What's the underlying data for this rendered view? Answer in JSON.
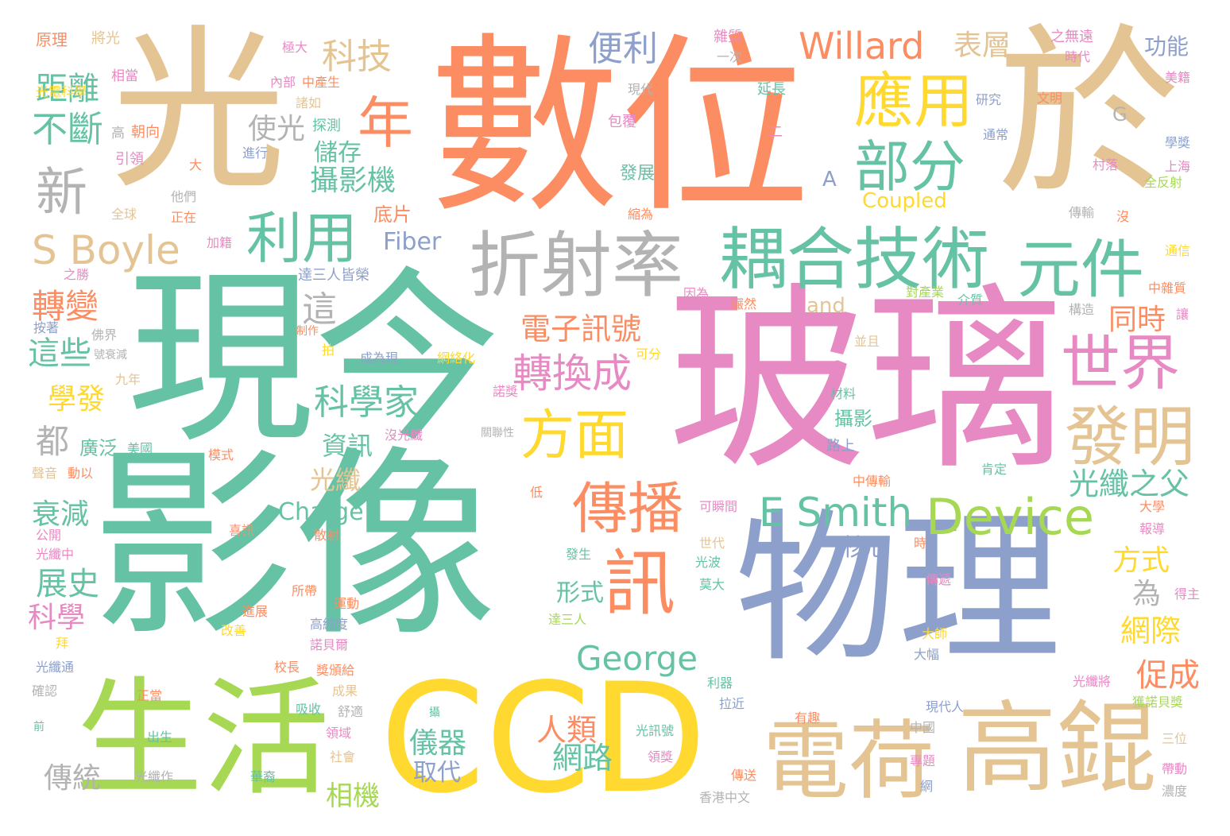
{
  "palette": {
    "teal": "#66c2a5",
    "orange": "#fc8d62",
    "blue": "#8da0cb",
    "pink": "#e78ac3",
    "green": "#a6d854",
    "yellow": "#ffd92f",
    "tan": "#e5c494",
    "gray": "#b3b3b3"
  },
  "words": [
    {
      "text": "光",
      "color": "tan"
    },
    {
      "text": "數位",
      "color": "orange"
    },
    {
      "text": "於",
      "color": "tan"
    },
    {
      "text": "現今",
      "color": "teal"
    },
    {
      "text": "影像",
      "color": "teal"
    },
    {
      "text": "玻璃",
      "color": "pink"
    },
    {
      "text": "物理",
      "color": "blue"
    },
    {
      "text": "CCD",
      "color": "yellow"
    },
    {
      "text": "生活",
      "color": "green"
    },
    {
      "text": "高錕",
      "color": "tan"
    },
    {
      "text": "電荷",
      "color": "tan"
    },
    {
      "text": "折射率",
      "color": "gray"
    },
    {
      "text": "耦合技術",
      "color": "teal"
    },
    {
      "text": "元件",
      "color": "teal"
    },
    {
      "text": "發明",
      "color": "tan"
    },
    {
      "text": "世界",
      "color": "pink"
    },
    {
      "text": "應用",
      "color": "yellow"
    },
    {
      "text": "部分",
      "color": "teal"
    },
    {
      "text": "利用",
      "color": "teal"
    },
    {
      "text": "傳播",
      "color": "orange"
    },
    {
      "text": "訊",
      "color": "orange"
    },
    {
      "text": "方面",
      "color": "yellow"
    },
    {
      "text": "新",
      "color": "gray"
    },
    {
      "text": "年",
      "color": "orange"
    },
    {
      "text": "E Smith",
      "color": "teal"
    },
    {
      "text": "Device",
      "color": "green"
    },
    {
      "text": "S Boyle",
      "color": "tan"
    },
    {
      "text": "Willard",
      "color": "orange"
    },
    {
      "text": "George",
      "color": "teal"
    },
    {
      "text": "科技",
      "color": "tan"
    },
    {
      "text": "便利",
      "color": "blue"
    },
    {
      "text": "表層",
      "color": "tan"
    },
    {
      "text": "功能",
      "color": "blue"
    },
    {
      "text": "距離",
      "color": "teal"
    },
    {
      "text": "不斷",
      "color": "teal"
    },
    {
      "text": "轉變",
      "color": "orange"
    },
    {
      "text": "這些",
      "color": "teal"
    },
    {
      "text": "學發",
      "color": "yellow"
    },
    {
      "text": "都",
      "color": "gray"
    },
    {
      "text": "衰減",
      "color": "teal"
    },
    {
      "text": "展史",
      "color": "teal"
    },
    {
      "text": "科學",
      "color": "pink"
    },
    {
      "text": "使光",
      "color": "gray"
    },
    {
      "text": "儲存",
      "color": "teal"
    },
    {
      "text": "攝影機",
      "color": "teal"
    },
    {
      "text": "這",
      "color": "gray"
    },
    {
      "text": "科學家",
      "color": "teal"
    },
    {
      "text": "資訊",
      "color": "teal"
    },
    {
      "text": "光纖",
      "color": "tan"
    },
    {
      "text": "廣泛",
      "color": "teal"
    },
    {
      "text": "Fiber",
      "color": "blue"
    },
    {
      "text": "底片",
      "color": "orange"
    },
    {
      "text": "電子訊號",
      "color": "orange"
    },
    {
      "text": "轉換成",
      "color": "pink"
    },
    {
      "text": "Charge",
      "color": "teal"
    },
    {
      "text": "核心",
      "color": "blue"
    },
    {
      "text": "形式",
      "color": "teal"
    },
    {
      "text": "人類",
      "color": "orange"
    },
    {
      "text": "儀器",
      "color": "teal"
    },
    {
      "text": "網路",
      "color": "teal"
    },
    {
      "text": "取代",
      "color": "blue"
    },
    {
      "text": "相機",
      "color": "green"
    },
    {
      "text": "傳統",
      "color": "gray"
    },
    {
      "text": "光纖之父",
      "color": "teal"
    },
    {
      "text": "同時",
      "color": "orange"
    },
    {
      "text": "方式",
      "color": "yellow"
    },
    {
      "text": "為",
      "color": "gray"
    },
    {
      "text": "網際",
      "color": "yellow"
    },
    {
      "text": "促成",
      "color": "orange"
    },
    {
      "text": "Coupled",
      "color": "yellow"
    },
    {
      "text": "and",
      "color": "tan"
    },
    {
      "text": "A",
      "color": "blue"
    },
    {
      "text": "G",
      "color": "gray"
    },
    {
      "text": "原理",
      "color": "orange"
    },
    {
      "text": "將光",
      "color": "tan"
    },
    {
      "text": "相當",
      "color": "pink"
    },
    {
      "text": "光電科學",
      "color": "yellow"
    },
    {
      "text": "朝向",
      "color": "orange"
    },
    {
      "text": "引領",
      "color": "pink"
    },
    {
      "text": "高",
      "color": "gray"
    },
    {
      "text": "極大",
      "color": "pink"
    },
    {
      "text": "內部",
      "color": "pink"
    },
    {
      "text": "中產生",
      "color": "orange"
    },
    {
      "text": "諸如",
      "color": "tan"
    },
    {
      "text": "雜質",
      "color": "pink"
    },
    {
      "text": "一次",
      "color": "gray"
    },
    {
      "text": "現代",
      "color": "gray"
    },
    {
      "text": "包覆",
      "color": "pink"
    },
    {
      "text": "延長",
      "color": "teal"
    },
    {
      "text": "二",
      "color": "pink"
    },
    {
      "text": "研究",
      "color": "blue"
    },
    {
      "text": "之無遠",
      "color": "pink"
    },
    {
      "text": "時代",
      "color": "pink"
    },
    {
      "text": "美籍",
      "color": "pink"
    },
    {
      "text": "文明",
      "color": "orange"
    },
    {
      "text": "通常",
      "color": "blue"
    },
    {
      "text": "學獎",
      "color": "blue"
    },
    {
      "text": "上海",
      "color": "pink"
    },
    {
      "text": "全反射",
      "color": "green"
    },
    {
      "text": "村落",
      "color": "pink"
    },
    {
      "text": "傳輸",
      "color": "gray"
    },
    {
      "text": "沒",
      "color": "orange"
    },
    {
      "text": "通信",
      "color": "yellow"
    },
    {
      "text": "中雜質",
      "color": "orange"
    },
    {
      "text": "讓",
      "color": "pink"
    },
    {
      "text": "構造",
      "color": "gray"
    },
    {
      "text": "介質",
      "color": "teal"
    },
    {
      "text": "對產業",
      "color": "green"
    },
    {
      "text": "並且",
      "color": "tan"
    },
    {
      "text": "探測",
      "color": "teal"
    },
    {
      "text": "進行",
      "color": "blue"
    },
    {
      "text": "大",
      "color": "orange"
    },
    {
      "text": "他們",
      "color": "gray"
    },
    {
      "text": "正在",
      "color": "orange"
    },
    {
      "text": "全球",
      "color": "tan"
    },
    {
      "text": "加籍",
      "color": "pink"
    },
    {
      "text": "之勝",
      "color": "pink"
    },
    {
      "text": "發展",
      "color": "teal"
    },
    {
      "text": "縮為",
      "color": "orange"
    },
    {
      "text": "達三人皆榮",
      "color": "blue"
    },
    {
      "text": "因為",
      "color": "pink"
    },
    {
      "text": "儼然",
      "color": "orange"
    },
    {
      "text": "按著",
      "color": "blue"
    },
    {
      "text": "佛界",
      "color": "gray"
    },
    {
      "text": "號衰減",
      "color": "gray"
    },
    {
      "text": "制作",
      "color": "orange"
    },
    {
      "text": "可分",
      "color": "yellow"
    },
    {
      "text": "拍",
      "color": "yellow"
    },
    {
      "text": "成為現",
      "color": "blue"
    },
    {
      "text": "網絡化",
      "color": "yellow"
    },
    {
      "text": "九年",
      "color": "tan"
    },
    {
      "text": "諾獎",
      "color": "pink"
    },
    {
      "text": "關聯性",
      "color": "gray"
    },
    {
      "text": "美國",
      "color": "teal"
    },
    {
      "text": "聲音",
      "color": "tan"
    },
    {
      "text": "動以",
      "color": "orange"
    },
    {
      "text": "模式",
      "color": "orange"
    },
    {
      "text": "沒光纖",
      "color": "pink"
    },
    {
      "text": "材料",
      "color": "teal"
    },
    {
      "text": "攝影",
      "color": "teal"
    },
    {
      "text": "路上",
      "color": "blue"
    },
    {
      "text": "中傳輸",
      "color": "orange"
    },
    {
      "text": "肯定",
      "color": "teal"
    },
    {
      "text": "低",
      "color": "orange"
    },
    {
      "text": "可瞬間",
      "color": "pink"
    },
    {
      "text": "大學",
      "color": "orange"
    },
    {
      "text": "報導",
      "color": "pink"
    },
    {
      "text": "時",
      "color": "orange"
    },
    {
      "text": "公開",
      "color": "pink"
    },
    {
      "text": "光纖中",
      "color": "pink"
    },
    {
      "text": "喜訊",
      "color": "orange"
    },
    {
      "text": "散射",
      "color": "orange"
    },
    {
      "text": "世代",
      "color": "tan"
    },
    {
      "text": "光波",
      "color": "teal"
    },
    {
      "text": "發生",
      "color": "teal"
    },
    {
      "text": "莫大",
      "color": "teal"
    },
    {
      "text": "傳遞",
      "color": "pink"
    },
    {
      "text": "得主",
      "color": "pink"
    },
    {
      "text": "所帶",
      "color": "orange"
    },
    {
      "text": "運動",
      "color": "orange"
    },
    {
      "text": "進展",
      "color": "orange"
    },
    {
      "text": "高純度",
      "color": "blue"
    },
    {
      "text": "達三人",
      "color": "green"
    },
    {
      "text": "拜",
      "color": "yellow"
    },
    {
      "text": "改善",
      "color": "yellow"
    },
    {
      "text": "諾貝爾",
      "color": "pink"
    },
    {
      "text": "大師",
      "color": "yellow"
    },
    {
      "text": "大幅",
      "color": "blue"
    },
    {
      "text": "光纖通",
      "color": "blue"
    },
    {
      "text": "確認",
      "color": "gray"
    },
    {
      "text": "校長",
      "color": "orange"
    },
    {
      "text": "獎頒給",
      "color": "orange"
    },
    {
      "text": "成果",
      "color": "tan"
    },
    {
      "text": "利器",
      "color": "teal"
    },
    {
      "text": "拉近",
      "color": "blue"
    },
    {
      "text": "光纖將",
      "color": "pink"
    },
    {
      "text": "獲諾貝獎",
      "color": "green"
    },
    {
      "text": "正當",
      "color": "orange"
    },
    {
      "text": "吸收",
      "color": "teal"
    },
    {
      "text": "舒適",
      "color": "gray"
    },
    {
      "text": "有趣",
      "color": "orange"
    },
    {
      "text": "現代人",
      "color": "blue"
    },
    {
      "text": "前",
      "color": "teal"
    },
    {
      "text": "攝",
      "color": "teal"
    },
    {
      "text": "出生",
      "color": "teal"
    },
    {
      "text": "領域",
      "color": "pink"
    },
    {
      "text": "中國",
      "color": "gray"
    },
    {
      "text": "光訊號",
      "color": "teal"
    },
    {
      "text": "三位",
      "color": "tan"
    },
    {
      "text": "社會",
      "color": "tan"
    },
    {
      "text": "領獎",
      "color": "pink"
    },
    {
      "text": "傳送",
      "color": "orange"
    },
    {
      "text": "專題",
      "color": "pink"
    },
    {
      "text": "帶動",
      "color": "pink"
    },
    {
      "text": "光纖作",
      "color": "gray"
    },
    {
      "text": "華裔",
      "color": "teal"
    },
    {
      "text": "網",
      "color": "blue"
    },
    {
      "text": "濃度",
      "color": "gray"
    },
    {
      "text": "香港中文",
      "color": "gray"
    }
  ]
}
